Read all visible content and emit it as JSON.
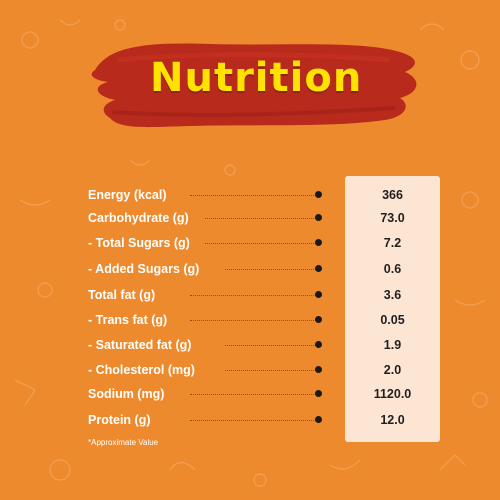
{
  "title": "Nutrition",
  "rows": [
    {
      "label": "Energy (kcal)",
      "value": "366"
    },
    {
      "label": "Carbohydrate (g)",
      "value": "73.0"
    },
    {
      "label": "- Total Sugars (g)",
      "value": "7.2"
    },
    {
      "label": " - Added Sugars (g)",
      "value": "0.6"
    },
    {
      "label": "Total fat (g)",
      "value": "3.6"
    },
    {
      "label": "- Trans fat (g)",
      "value": "0.05"
    },
    {
      "label": "- Saturated fat (g)",
      "value": "1.9"
    },
    {
      "label": "- Cholesterol (mg)",
      "value": "2.0"
    },
    {
      "label": "Sodium (mg)",
      "value": "1120.0"
    },
    {
      "label": "Protein (g)",
      "value": "12.0"
    }
  ],
  "footnote": "*Approximate Value",
  "colors": {
    "background": "#ee8a2e",
    "brush": "#b72a1c",
    "title": "#ffe200",
    "panel": "#fde5d4"
  }
}
